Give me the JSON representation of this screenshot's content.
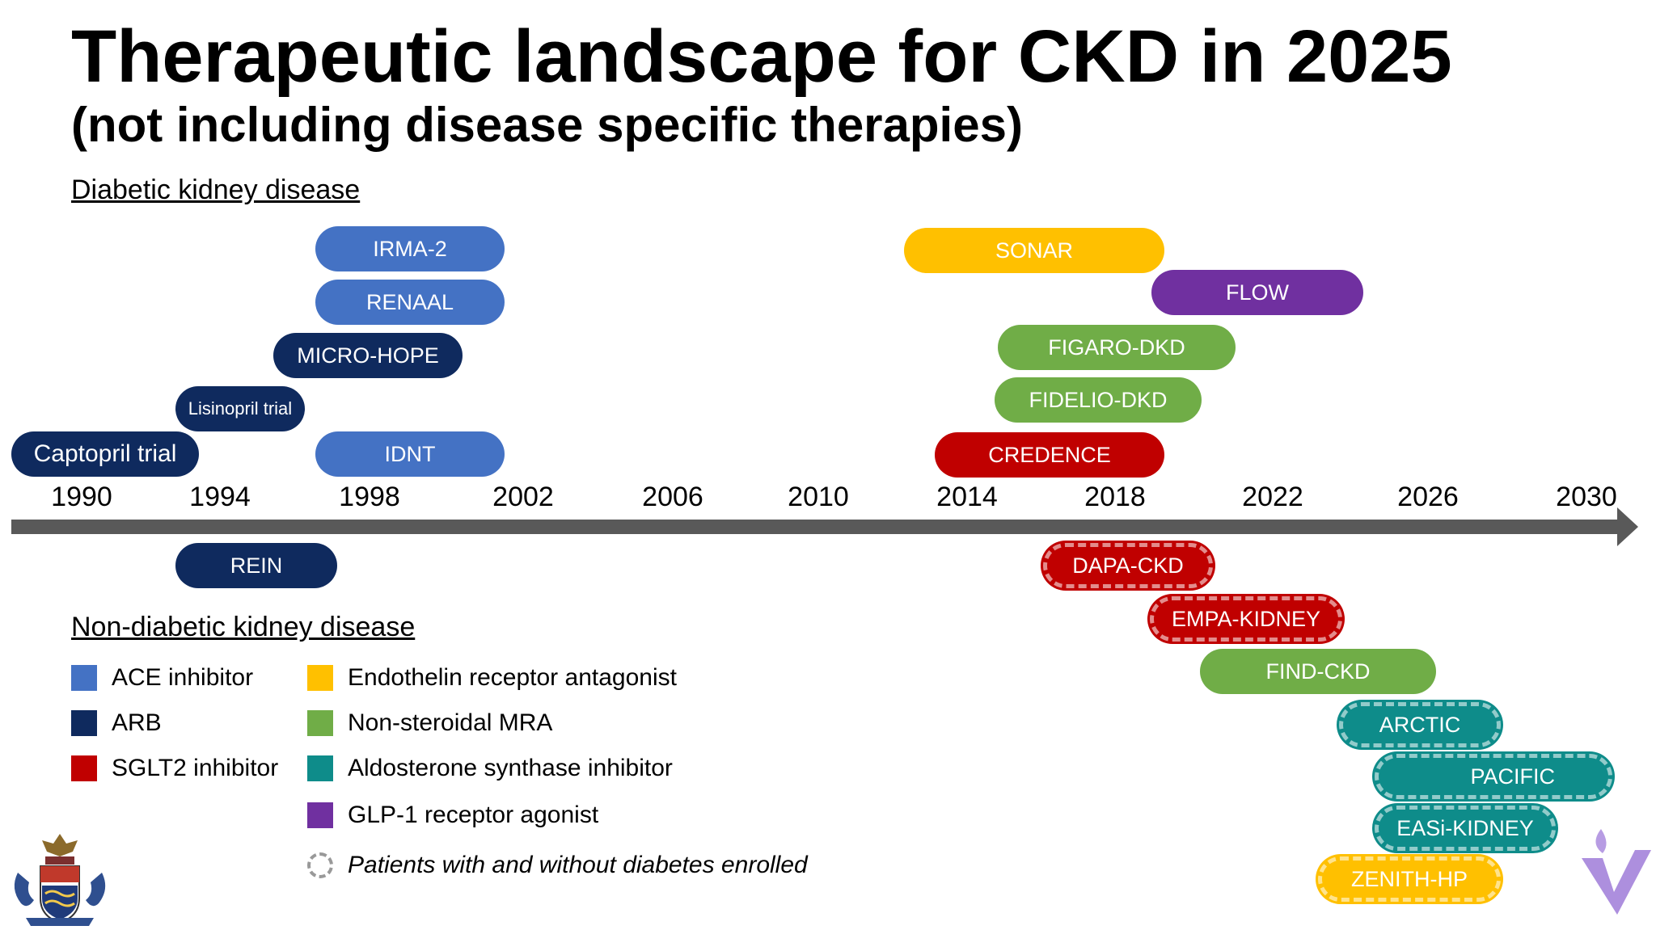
{
  "title": "Therapeutic landscape for CKD in 2025",
  "subtitle": "(not including disease specific therapies)",
  "sections": {
    "diabetic": "Diabetic kidney disease",
    "non_diabetic": "Non-diabetic kidney disease"
  },
  "axis": {
    "ticks": [
      "1990",
      "1994",
      "1998",
      "2002",
      "2006",
      "2010",
      "2014",
      "2018",
      "2022",
      "2026",
      "2030"
    ]
  },
  "trials_above": {
    "irma2": "IRMA-2",
    "renaal": "RENAAL",
    "micro_hope": "MICRO-HOPE",
    "lisinopril": "Lisinopril trial",
    "captopril": "Captopril trial",
    "idnt": "IDNT",
    "sonar": "SONAR",
    "flow": "FLOW",
    "figaro": "FIGARO-DKD",
    "fidelio": "FIDELIO-DKD",
    "credence": "CREDENCE"
  },
  "trials_below": {
    "rein": "REIN",
    "dapa": "DAPA-CKD",
    "empa": "EMPA-KIDNEY",
    "find": "FIND-CKD",
    "arctic": "ARCTIC",
    "pacific": "PACIFIC",
    "easi": "EASi-KIDNEY",
    "zenith": "ZENITH-HP"
  },
  "legend": {
    "ace": "ACE inhibitor",
    "arb": "ARB",
    "sglt2": "SGLT2 inhibitor",
    "era": "Endothelin receptor antagonist",
    "mra": "Non-steroidal MRA",
    "asi": "Aldosterone synthase inhibitor",
    "glp1": "GLP-1 receptor agonist",
    "mixed": "Patients with and without diabetes enrolled"
  },
  "colors": {
    "ace": "#4472C4",
    "arb": "#0F2A5E",
    "sglt2": "#C00000",
    "era": "#FFC000",
    "mra": "#70AD47",
    "asi": "#0E8C8A",
    "glp1": "#7030A0",
    "axis": "#595959"
  }
}
